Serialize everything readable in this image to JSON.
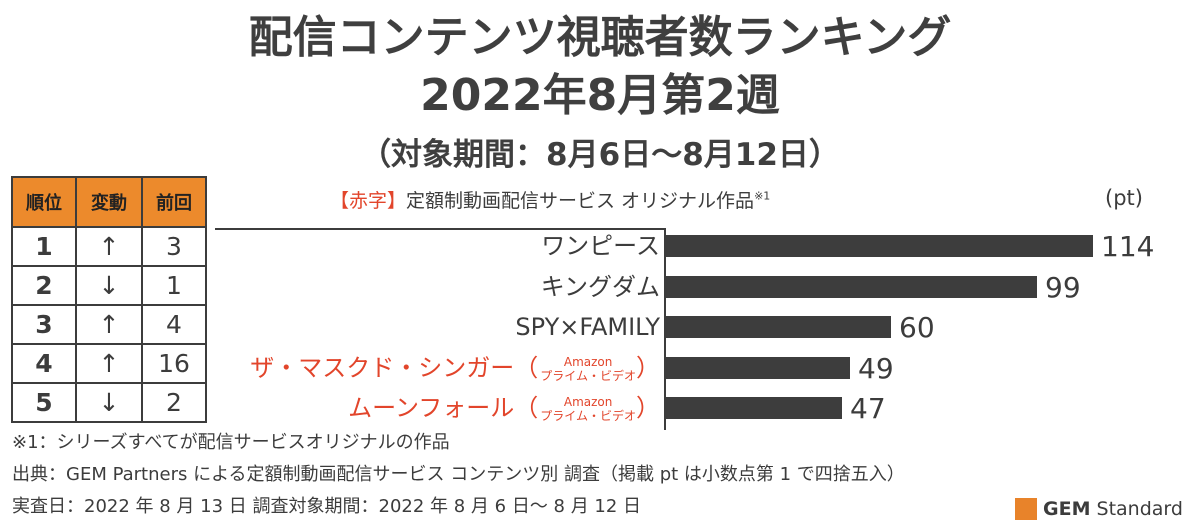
{
  "title_line1": "配信コンテンツ視聴者数ランキング",
  "title_line2": "2022年8月第2週",
  "title_line3": "（対象期間：8月6日～8月12日）",
  "table_headers": [
    "順位",
    "変動",
    "前回"
  ],
  "legend": {
    "red": "【赤字】",
    "text": "定額制動画配信サービス オリジナル作品",
    "note": "※1"
  },
  "unit": "(pt)",
  "arrows": {
    "up": "↑",
    "down": "↓"
  },
  "chart_data": {
    "type": "bar",
    "orientation": "horizontal",
    "categories": [
      "ワンピース",
      "キングダム",
      "SPY×FAMILY",
      "ザ・マスクド・シンガー",
      "ムーンフォール"
    ],
    "values": [
      114,
      99,
      60,
      49,
      47
    ],
    "unit": "pt",
    "red_labels": [
      false,
      false,
      false,
      true,
      true
    ],
    "notes": [
      "",
      "",
      "",
      "Amazon プライム・ビデオ",
      "Amazon プライム・ビデオ"
    ],
    "rank": [
      1,
      2,
      3,
      4,
      5
    ],
    "change": [
      "up",
      "down",
      "up",
      "up",
      "down"
    ],
    "previous": [
      3,
      1,
      4,
      16,
      2
    ],
    "bar_color": "#3d3d3d",
    "highlight_color": "#e2452b"
  },
  "note_top": "Amazon",
  "note_bottom": "プライム・ビデオ",
  "footnotes": [
    "※1：シリーズすべてが配信サービスオリジナルの作品",
    "出典：GEM Partners による定額制動画配信サービス コンテンツ別 調査（掲載 pt は小数点第 1 で四捨五入）",
    "実査日：2022 年 8 月 13 日 調査対象期間：2022 年 8 月 6 日～ 8 月 12 日"
  ],
  "logo": {
    "bold": "GEM",
    "rest": " Standard",
    "color": "#e8832a"
  }
}
